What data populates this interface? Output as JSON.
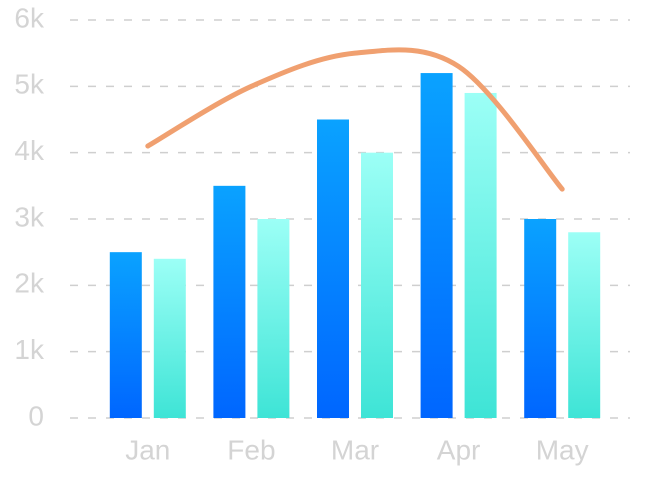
{
  "chart_data": {
    "type": "bar",
    "categories": [
      "Jan",
      "Feb",
      "Mar",
      "Apr",
      "May"
    ],
    "series": [
      {
        "type": "bar",
        "colors": [
          "#0aa2ff",
          "#0066ff"
        ],
        "values": [
          2500,
          3500,
          4500,
          5200,
          3000
        ]
      },
      {
        "type": "bar",
        "colors": [
          "#9cfff6",
          "#3ee4d6"
        ],
        "values": [
          2400,
          3000,
          4000,
          4900,
          2800
        ]
      },
      {
        "type": "line",
        "color": "#f0a070",
        "values": [
          4100,
          5000,
          5500,
          5300,
          3450
        ]
      }
    ],
    "ylim": [
      0,
      6000
    ],
    "yticks": [
      0,
      {
        "value": 1000,
        "label": "1k"
      },
      {
        "value": 2000,
        "label": "2k"
      },
      {
        "value": 3000,
        "label": "3k"
      },
      {
        "value": 4000,
        "label": "4k"
      },
      {
        "value": 5000,
        "label": "5k"
      },
      {
        "value": 6000,
        "label": "6k"
      }
    ],
    "grid": true
  }
}
